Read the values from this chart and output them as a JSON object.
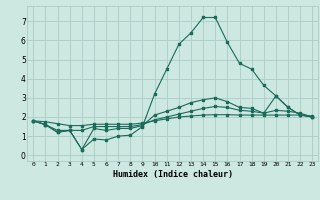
{
  "xlabel": "Humidex (Indice chaleur)",
  "xlim": [
    -0.5,
    23.5
  ],
  "ylim": [
    -0.3,
    7.8
  ],
  "xticks": [
    0,
    1,
    2,
    3,
    4,
    5,
    6,
    7,
    8,
    9,
    10,
    11,
    12,
    13,
    14,
    15,
    16,
    17,
    18,
    19,
    20,
    21,
    22,
    23
  ],
  "yticks": [
    0,
    1,
    2,
    3,
    4,
    5,
    6,
    7
  ],
  "bg_color": "#cce8e0",
  "grid_color": "#aaccc4",
  "line_color": "#1a6b5a",
  "series1": [
    1.8,
    1.6,
    1.2,
    1.3,
    0.3,
    0.85,
    0.8,
    1.0,
    1.05,
    1.5,
    3.2,
    4.5,
    5.8,
    6.4,
    7.2,
    7.2,
    5.9,
    4.8,
    4.5,
    3.65,
    3.1,
    2.5,
    2.1,
    2.0
  ],
  "series2": [
    1.8,
    1.6,
    1.2,
    1.3,
    0.3,
    1.4,
    1.3,
    1.4,
    1.4,
    1.55,
    2.1,
    2.3,
    2.5,
    2.75,
    2.9,
    3.0,
    2.8,
    2.5,
    2.45,
    2.2,
    3.1,
    2.5,
    2.1,
    2.0
  ],
  "series3": [
    1.8,
    1.6,
    1.3,
    1.3,
    1.3,
    1.5,
    1.5,
    1.5,
    1.5,
    1.6,
    1.85,
    2.0,
    2.15,
    2.3,
    2.45,
    2.55,
    2.5,
    2.35,
    2.3,
    2.2,
    2.35,
    2.3,
    2.2,
    2.0
  ],
  "series4": [
    1.8,
    1.75,
    1.65,
    1.55,
    1.55,
    1.62,
    1.62,
    1.62,
    1.62,
    1.68,
    1.8,
    1.9,
    2.0,
    2.05,
    2.1,
    2.12,
    2.12,
    2.1,
    2.1,
    2.1,
    2.1,
    2.1,
    2.1,
    2.05
  ]
}
